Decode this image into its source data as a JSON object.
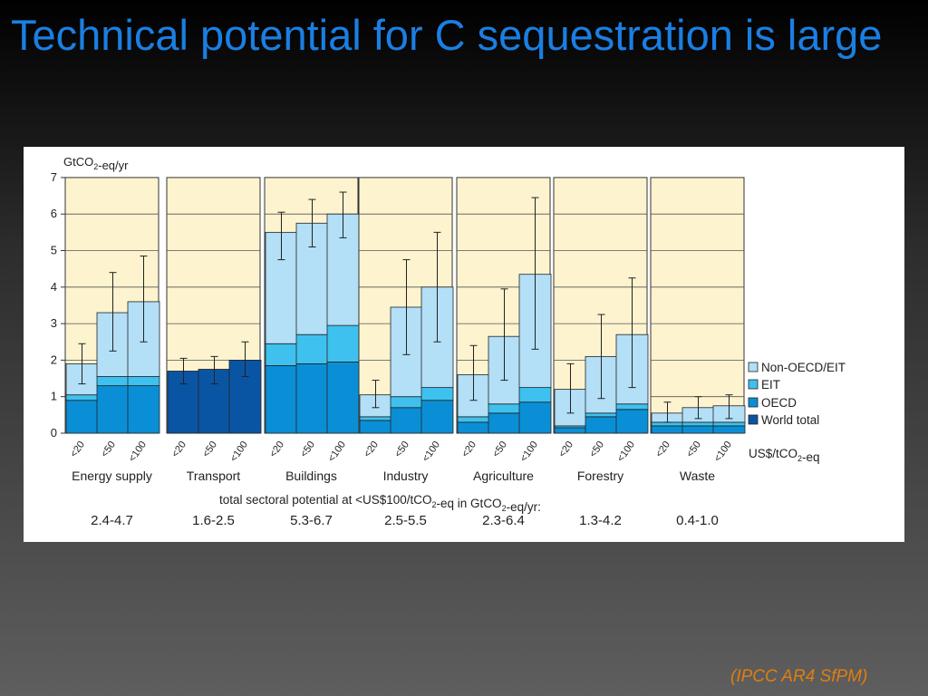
{
  "slide": {
    "title": "Technical potential for C sequestration is large",
    "citation": "(IPCC AR4 SfPM)"
  },
  "colors": {
    "non_oecd_eit": "#b3dff7",
    "eit": "#3ec1ee",
    "oecd": "#0a8fd6",
    "world_total": "#0a55a3",
    "panel_bg": "#fdf3cf",
    "title": "#1a7fe3",
    "citation": "#e07e10"
  },
  "chart_data": {
    "type": "bar",
    "stacked": true,
    "ylabel": "GtCO2-eq/yr",
    "ylim": [
      0,
      7
    ],
    "yticks": [
      0,
      1,
      2,
      3,
      4,
      5,
      6,
      7
    ],
    "grid": true,
    "legend_position": "right",
    "price_unit_label": "US$/tCO2-eq",
    "price_categories": [
      "<20",
      "<50",
      "<100"
    ],
    "legend": [
      {
        "key": "non_oecd_eit",
        "label": "Non-OECD/EIT"
      },
      {
        "key": "eit",
        "label": "EIT"
      },
      {
        "key": "oecd",
        "label": "OECD"
      },
      {
        "key": "world_total",
        "label": "World total"
      }
    ],
    "potential_caption": "total sectoral potential at <US$100/tCO2-eq in GtCO2-eq/yr:",
    "sectors": [
      {
        "name": "Energy supply",
        "total_potential": "2.4-4.7",
        "bars": [
          {
            "price": "<20",
            "oecd": 0.9,
            "eit": 0.15,
            "non_oecd_eit": 0.85,
            "error": [
              1.35,
              2.45
            ]
          },
          {
            "price": "<50",
            "oecd": 1.3,
            "eit": 0.25,
            "non_oecd_eit": 1.75,
            "error": [
              2.25,
              4.4
            ]
          },
          {
            "price": "<100",
            "oecd": 1.3,
            "eit": 0.25,
            "non_oecd_eit": 2.05,
            "error": [
              2.5,
              4.85
            ]
          }
        ]
      },
      {
        "name": "Transport",
        "total_potential": "1.6-2.5",
        "bars": [
          {
            "price": "<20",
            "world_total": 1.7,
            "error": [
              1.35,
              2.05
            ]
          },
          {
            "price": "<50",
            "world_total": 1.75,
            "error": [
              1.35,
              2.1
            ]
          },
          {
            "price": "<100",
            "world_total": 2.0,
            "error": [
              1.55,
              2.5
            ]
          }
        ]
      },
      {
        "name": "Buildings",
        "total_potential": "5.3-6.7",
        "bars": [
          {
            "price": "<20",
            "oecd": 1.85,
            "eit": 0.6,
            "non_oecd_eit": 3.05,
            "error": [
              4.75,
              6.05
            ]
          },
          {
            "price": "<50",
            "oecd": 1.9,
            "eit": 0.8,
            "non_oecd_eit": 3.05,
            "error": [
              5.1,
              6.4
            ]
          },
          {
            "price": "<100",
            "oecd": 1.95,
            "eit": 1.0,
            "non_oecd_eit": 3.05,
            "error": [
              5.35,
              6.6
            ]
          }
        ]
      },
      {
        "name": "Industry",
        "total_potential": "2.5-5.5",
        "bars": [
          {
            "price": "<20",
            "oecd": 0.35,
            "eit": 0.1,
            "non_oecd_eit": 0.6,
            "error": [
              0.7,
              1.45
            ]
          },
          {
            "price": "<50",
            "oecd": 0.7,
            "eit": 0.3,
            "non_oecd_eit": 2.45,
            "error": [
              2.15,
              4.75
            ]
          },
          {
            "price": "<100",
            "oecd": 0.9,
            "eit": 0.35,
            "non_oecd_eit": 2.75,
            "error": [
              2.5,
              5.5
            ]
          }
        ]
      },
      {
        "name": "Agriculture",
        "total_potential": "2.3-6.4",
        "bars": [
          {
            "price": "<20",
            "oecd": 0.3,
            "eit": 0.15,
            "non_oecd_eit": 1.15,
            "error": [
              0.9,
              2.4
            ]
          },
          {
            "price": "<50",
            "oecd": 0.55,
            "eit": 0.25,
            "non_oecd_eit": 1.85,
            "error": [
              1.45,
              3.95
            ]
          },
          {
            "price": "<100",
            "oecd": 0.85,
            "eit": 0.4,
            "non_oecd_eit": 3.1,
            "error": [
              2.3,
              6.45
            ]
          }
        ]
      },
      {
        "name": "Forestry",
        "total_potential": "1.3-4.2",
        "bars": [
          {
            "price": "<20",
            "oecd": 0.15,
            "eit": 0.05,
            "non_oecd_eit": 1.0,
            "error": [
              0.55,
              1.9
            ]
          },
          {
            "price": "<50",
            "oecd": 0.45,
            "eit": 0.1,
            "non_oecd_eit": 1.55,
            "error": [
              0.95,
              3.25
            ]
          },
          {
            "price": "<100",
            "oecd": 0.65,
            "eit": 0.15,
            "non_oecd_eit": 1.9,
            "error": [
              1.25,
              4.25
            ]
          }
        ]
      },
      {
        "name": "Waste",
        "total_potential": "0.4-1.0",
        "bars": [
          {
            "price": "<20",
            "oecd": 0.2,
            "eit": 0.1,
            "non_oecd_eit": 0.25,
            "error": [
              0.3,
              0.85
            ]
          },
          {
            "price": "<50",
            "oecd": 0.2,
            "eit": 0.1,
            "non_oecd_eit": 0.4,
            "error": [
              0.4,
              1.0
            ]
          },
          {
            "price": "<100",
            "oecd": 0.2,
            "eit": 0.1,
            "non_oecd_eit": 0.45,
            "error": [
              0.4,
              1.05
            ]
          }
        ]
      }
    ]
  }
}
